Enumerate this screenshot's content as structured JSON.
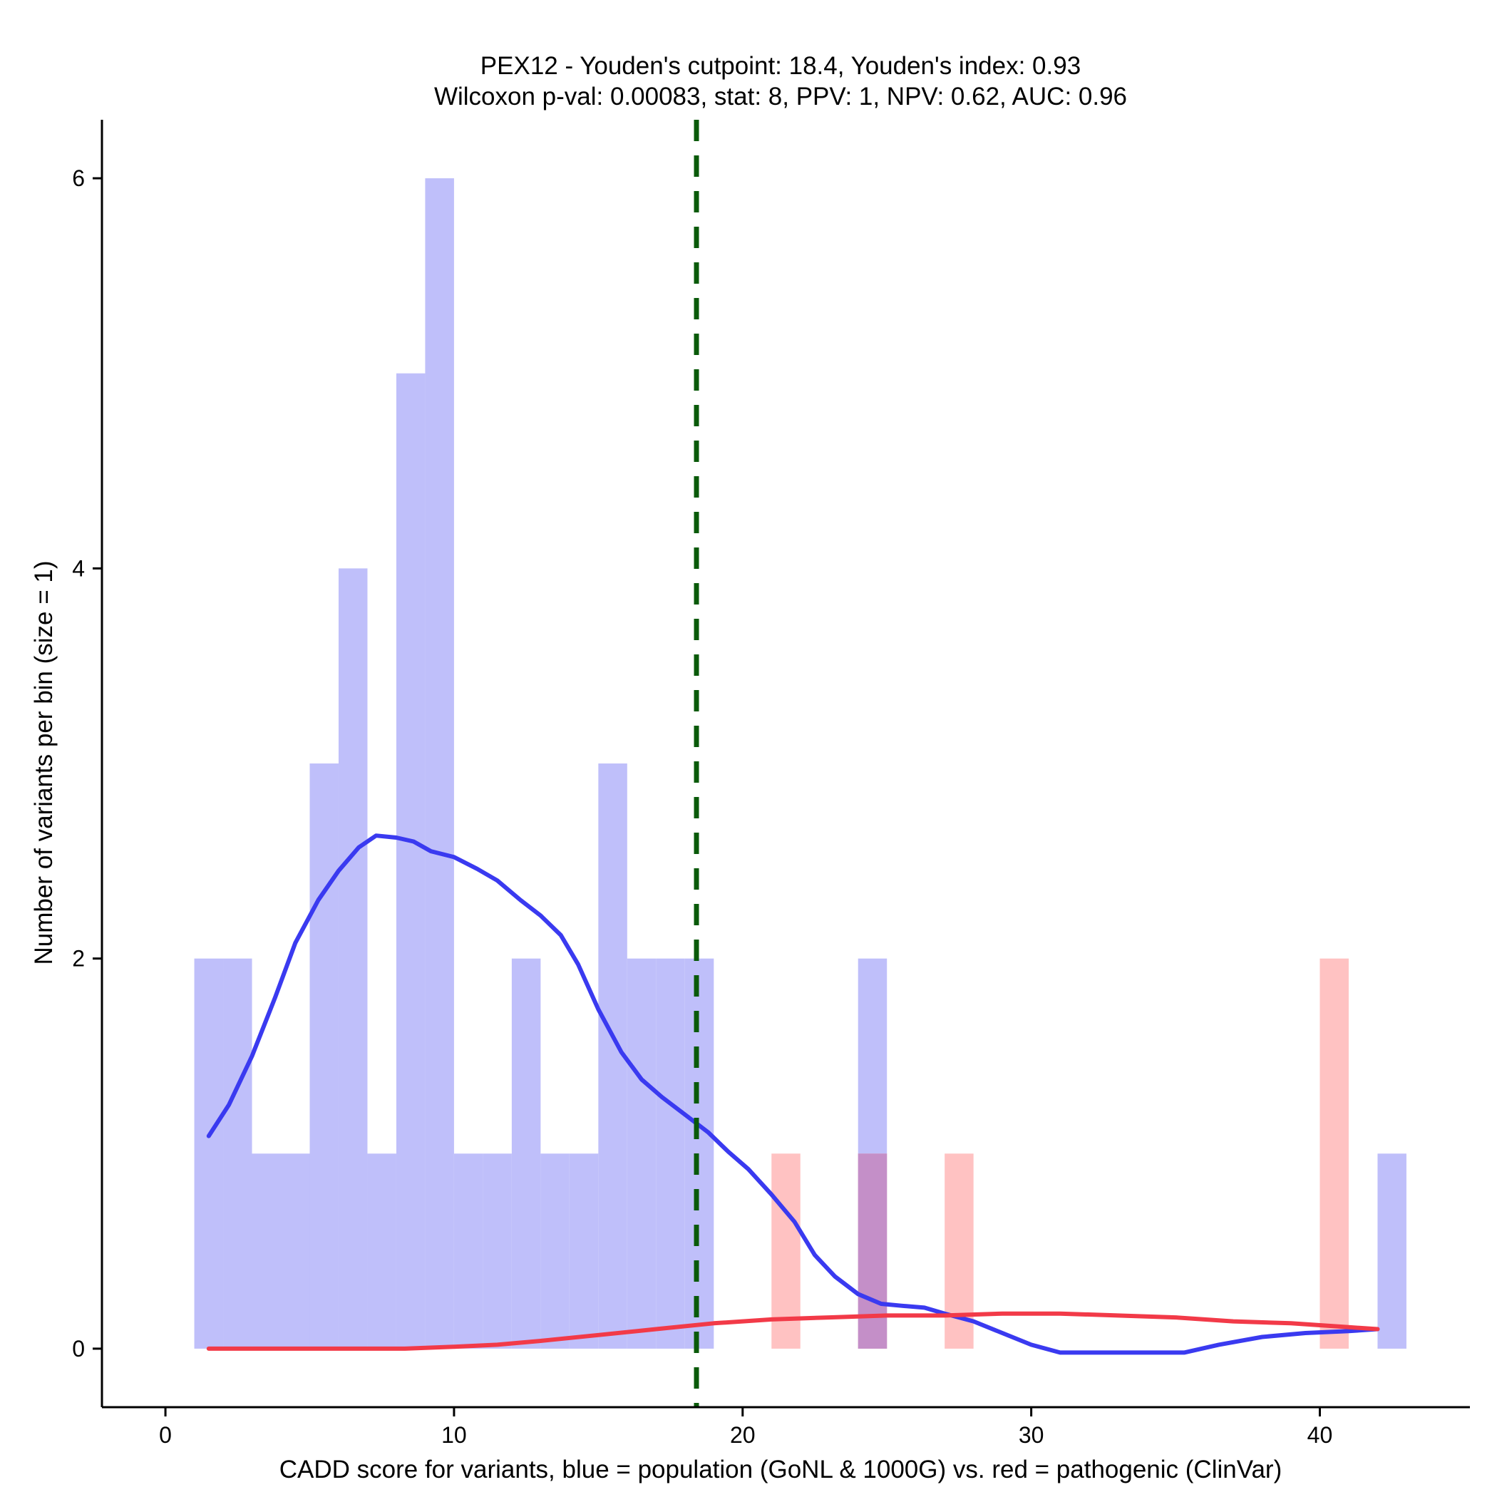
{
  "chart_data": {
    "type": "histogram",
    "title": "PEX12 - Youden's cutpoint: 18.4, Youden's index: 0.93",
    "subtitle": "Wilcoxon p-val: 0.00083, stat: 8, PPV: 1, NPV: 0.62, AUC: 0.96",
    "xlabel": "CADD score for variants, blue = population (GoNL & 1000G) vs. red = pathogenic (ClinVar)",
    "ylabel": "Number of variants per bin (size = 1)",
    "xlim": [
      -2.2,
      45.2
    ],
    "ylim": [
      -0.3,
      6.3
    ],
    "x_ticks": [
      0,
      10,
      20,
      30,
      40
    ],
    "y_ticks": [
      0,
      2,
      4,
      6
    ],
    "bin_width": 1,
    "cutpoint": 18.4,
    "colors": {
      "population": "#bfbffa",
      "pathogenic": "#ffbfbf",
      "population_density": "#3a3af0",
      "pathogenic_density": "#f23a48",
      "cutpoint_line": "#0a5a0a"
    },
    "series": [
      {
        "key": "population",
        "bins": [
          {
            "x0": 1,
            "count": 2
          },
          {
            "x0": 2,
            "count": 2
          },
          {
            "x0": 3,
            "count": 1
          },
          {
            "x0": 4,
            "count": 1
          },
          {
            "x0": 5,
            "count": 3
          },
          {
            "x0": 6,
            "count": 4
          },
          {
            "x0": 7,
            "count": 1
          },
          {
            "x0": 8,
            "count": 5
          },
          {
            "x0": 9,
            "count": 6
          },
          {
            "x0": 10,
            "count": 1
          },
          {
            "x0": 11,
            "count": 1
          },
          {
            "x0": 12,
            "count": 2
          },
          {
            "x0": 13,
            "count": 1
          },
          {
            "x0": 14,
            "count": 1
          },
          {
            "x0": 15,
            "count": 3
          },
          {
            "x0": 16,
            "count": 2
          },
          {
            "x0": 17,
            "count": 2
          },
          {
            "x0": 18,
            "count": 2
          },
          {
            "x0": 24,
            "count": 2
          },
          {
            "x0": 42,
            "count": 1
          }
        ],
        "density_curve": [
          [
            1.5,
            1.09
          ],
          [
            2.2,
            1.25
          ],
          [
            3,
            1.5
          ],
          [
            3.8,
            1.8
          ],
          [
            4.5,
            2.08
          ],
          [
            5.3,
            2.3
          ],
          [
            6,
            2.45
          ],
          [
            6.7,
            2.57
          ],
          [
            7.3,
            2.63
          ],
          [
            8,
            2.62
          ],
          [
            8.6,
            2.6
          ],
          [
            9.2,
            2.55
          ],
          [
            10,
            2.52
          ],
          [
            10.8,
            2.46
          ],
          [
            11.5,
            2.4
          ],
          [
            12.3,
            2.3
          ],
          [
            13,
            2.22
          ],
          [
            13.7,
            2.12
          ],
          [
            14.3,
            1.97
          ],
          [
            15,
            1.74
          ],
          [
            15.8,
            1.52
          ],
          [
            16.5,
            1.38
          ],
          [
            17.2,
            1.29
          ],
          [
            18,
            1.2
          ],
          [
            18.8,
            1.11
          ],
          [
            19.5,
            1.01
          ],
          [
            20.2,
            0.92
          ],
          [
            21,
            0.79
          ],
          [
            21.8,
            0.65
          ],
          [
            22.5,
            0.48
          ],
          [
            23.2,
            0.37
          ],
          [
            24,
            0.28
          ],
          [
            24.8,
            0.23
          ],
          [
            25.5,
            0.22
          ],
          [
            26.3,
            0.21
          ],
          [
            27,
            0.18
          ],
          [
            28,
            0.14
          ],
          [
            29,
            0.08
          ],
          [
            30,
            0.02
          ],
          [
            31,
            -0.02
          ],
          [
            33,
            -0.02
          ],
          [
            35.3,
            -0.02
          ],
          [
            36.5,
            0.02
          ],
          [
            38,
            0.06
          ],
          [
            39.5,
            0.08
          ],
          [
            41,
            0.09
          ],
          [
            42,
            0.1
          ]
        ]
      },
      {
        "key": "pathogenic",
        "bins": [
          {
            "x0": 21,
            "count": 1
          },
          {
            "x0": 24,
            "count": 1
          },
          {
            "x0": 27,
            "count": 1
          },
          {
            "x0": 40,
            "count": 2
          }
        ],
        "density_curve": [
          [
            1.5,
            0
          ],
          [
            4,
            0
          ],
          [
            6,
            0
          ],
          [
            8.3,
            0
          ],
          [
            10,
            0.01
          ],
          [
            11.5,
            0.02
          ],
          [
            13,
            0.04
          ],
          [
            15,
            0.07
          ],
          [
            17,
            0.1
          ],
          [
            19,
            0.13
          ],
          [
            21,
            0.15
          ],
          [
            23,
            0.16
          ],
          [
            25,
            0.17
          ],
          [
            27,
            0.17
          ],
          [
            29,
            0.18
          ],
          [
            31,
            0.18
          ],
          [
            33,
            0.17
          ],
          [
            35,
            0.16
          ],
          [
            37,
            0.14
          ],
          [
            39,
            0.13
          ],
          [
            41,
            0.11
          ],
          [
            42,
            0.1
          ]
        ]
      }
    ]
  }
}
